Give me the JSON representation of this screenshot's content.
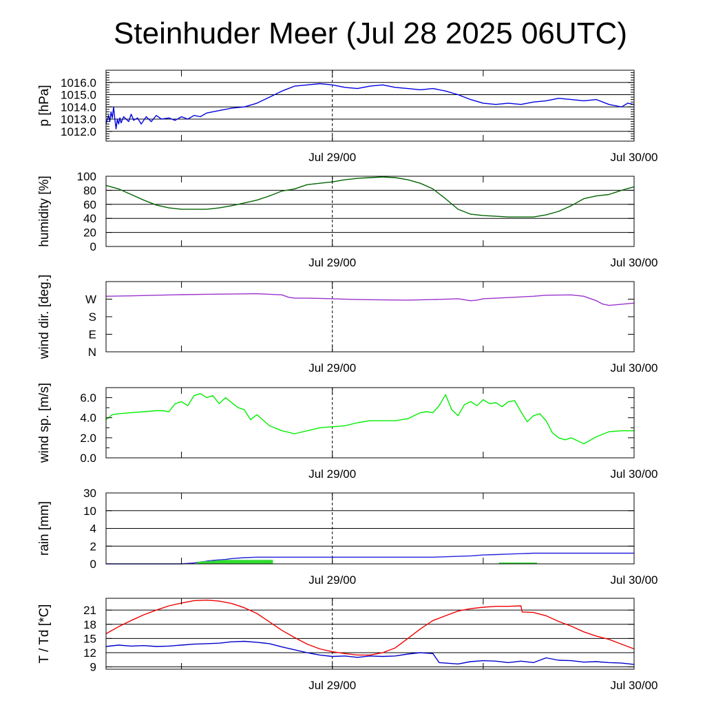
{
  "title": "Steinhuder Meer (Jul 28 2025 06UTC)",
  "x_axis": {
    "range_hours": [
      0,
      42
    ],
    "unit": "hours after Jul 28 2025 06UTC",
    "ticks_hours": [
      6,
      18,
      30,
      42
    ],
    "labels": [
      {
        "at_hours": 18,
        "text": "Jul 29/00"
      },
      {
        "at_hours": 42,
        "text": "Jul 30/00"
      }
    ],
    "midnight_marker_hours": 18
  },
  "chart_data": [
    {
      "type": "line",
      "ylabel": "p [hPa]",
      "ylim": [
        1011.2,
        1017.0
      ],
      "grid": true,
      "ticks": [
        {
          "value": 1012,
          "label": "1012.0"
        },
        {
          "value": 1013,
          "label": "1013.0"
        },
        {
          "value": 1014,
          "label": "1014.0"
        },
        {
          "value": 1015,
          "label": "1015.0"
        },
        {
          "value": 1016,
          "label": "1016.0"
        }
      ],
      "minor_ticks": [
        1011.2,
        1011.4,
        1011.6,
        1011.8,
        1012.2,
        1012.4,
        1012.6,
        1012.8,
        1013.2,
        1013.4,
        1013.6,
        1013.8,
        1014.2,
        1014.4,
        1014.6,
        1014.8,
        1015.2,
        1015.4,
        1015.6,
        1015.8,
        1016.2,
        1016.4,
        1016.6,
        1016.8
      ],
      "series": [
        {
          "color": "#0000e0",
          "x": [
            0,
            0.2,
            0.3,
            0.4,
            0.5,
            0.6,
            0.7,
            0.8,
            0.9,
            1.0,
            1.1,
            1.2,
            1.4,
            1.6,
            1.8,
            2.0,
            2.2,
            2.5,
            2.8,
            3.2,
            3.6,
            4.0,
            4.4,
            5.0,
            5.5,
            6.0,
            6.5,
            7.0,
            7.5,
            8,
            9,
            10,
            11,
            12,
            13,
            14,
            15,
            16,
            17,
            18,
            19,
            20,
            21,
            22,
            23,
            24,
            25,
            26,
            27,
            28,
            29,
            30,
            31,
            32,
            33,
            34,
            35,
            36,
            37,
            38,
            39,
            40,
            40.5,
            41,
            41.5,
            42
          ],
          "y": [
            1012.6,
            1013.3,
            1012.8,
            1013.6,
            1013.1,
            1014.0,
            1013.0,
            1012.2,
            1013.0,
            1012.6,
            1013.1,
            1012.7,
            1013.2,
            1013.0,
            1012.8,
            1013.4,
            1012.9,
            1013.1,
            1012.6,
            1013.2,
            1012.8,
            1013.3,
            1013.0,
            1013.1,
            1012.9,
            1013.2,
            1013.0,
            1013.3,
            1013.2,
            1013.5,
            1013.7,
            1013.9,
            1014.0,
            1014.3,
            1014.8,
            1015.3,
            1015.7,
            1015.8,
            1015.9,
            1015.8,
            1015.6,
            1015.5,
            1015.7,
            1015.8,
            1015.6,
            1015.5,
            1015.4,
            1015.5,
            1015.3,
            1015.0,
            1014.6,
            1014.3,
            1014.2,
            1014.3,
            1014.2,
            1014.4,
            1014.5,
            1014.7,
            1014.6,
            1014.5,
            1014.6,
            1014.2,
            1014.1,
            1014.0,
            1014.3,
            1014.2
          ]
        }
      ]
    },
    {
      "type": "line",
      "ylabel": "humidity [%]",
      "ylim": [
        0,
        100
      ],
      "grid": true,
      "ticks": [
        {
          "value": 0,
          "label": "0"
        },
        {
          "value": 20,
          "label": "20"
        },
        {
          "value": 40,
          "label": "40"
        },
        {
          "value": 60,
          "label": "60"
        },
        {
          "value": 80,
          "label": "80"
        },
        {
          "value": 100,
          "label": "100"
        }
      ],
      "series": [
        {
          "color": "#006400",
          "x": [
            0,
            1,
            2,
            3,
            4,
            5,
            6,
            7,
            8,
            9,
            10,
            11,
            12,
            13,
            14,
            15,
            16,
            17,
            18,
            19,
            20,
            21,
            22,
            23,
            24,
            25,
            26,
            27,
            28,
            29,
            30,
            31,
            32,
            33,
            34,
            35,
            36,
            37,
            38,
            39,
            40,
            41,
            42
          ],
          "y": [
            87,
            82,
            74,
            66,
            59,
            55,
            53,
            53,
            53,
            55,
            58,
            62,
            66,
            72,
            79,
            82,
            88,
            90,
            92,
            95,
            97,
            98,
            99,
            98,
            95,
            90,
            82,
            68,
            53,
            46,
            44,
            43,
            42,
            42,
            42,
            45,
            50,
            58,
            68,
            72,
            74,
            80,
            85
          ]
        }
      ]
    },
    {
      "type": "line",
      "ylabel": "wind dir. [deg.]",
      "ylim": [
        0,
        360
      ],
      "grid": false,
      "ticks": [
        {
          "value": 0,
          "label": "N"
        },
        {
          "value": 90,
          "label": "E"
        },
        {
          "value": 180,
          "label": "S"
        },
        {
          "value": 270,
          "label": "W"
        }
      ],
      "series": [
        {
          "color": "#9932cc",
          "x": [
            0,
            2,
            4,
            6,
            8,
            10,
            12,
            13,
            14,
            14.5,
            15,
            16,
            17,
            18,
            20,
            22,
            24,
            26,
            28,
            29,
            29.5,
            30,
            32,
            34,
            35,
            36,
            37,
            38,
            39,
            39.5,
            40,
            41,
            42
          ],
          "y": [
            285,
            287,
            290,
            293,
            295,
            296,
            298,
            295,
            292,
            280,
            275,
            275,
            274,
            272,
            268,
            266,
            265,
            268,
            272,
            262,
            265,
            272,
            278,
            285,
            290,
            291,
            292,
            285,
            262,
            245,
            238,
            244,
            250
          ]
        }
      ]
    },
    {
      "type": "line",
      "ylabel": "wind sp. [m/s]",
      "ylim": [
        0,
        7
      ],
      "grid": false,
      "ticks": [
        {
          "value": 0,
          "label": "0.0"
        },
        {
          "value": 2,
          "label": "2.0"
        },
        {
          "value": 4,
          "label": "4.0"
        },
        {
          "value": 6,
          "label": "6.0"
        }
      ],
      "minor_ticks": [
        1,
        3,
        5
      ],
      "series": [
        {
          "color": "#00ee00",
          "x": [
            0,
            0.5,
            1,
            2,
            3,
            4,
            4.5,
            5,
            5.5,
            6,
            6.5,
            7,
            7.5,
            8,
            8.5,
            9,
            9.5,
            10,
            10.5,
            11,
            11.5,
            12,
            13,
            14,
            15,
            16,
            17,
            18,
            19,
            20,
            21,
            22,
            23,
            24,
            25,
            25.5,
            26,
            26.5,
            27,
            27.5,
            28,
            28.5,
            29,
            29.5,
            30,
            30.5,
            31,
            31.5,
            32,
            32.5,
            33,
            33.5,
            34,
            34.5,
            35,
            35.5,
            36,
            36.5,
            37,
            38,
            39,
            40,
            41,
            42
          ],
          "y": [
            3.8,
            4.3,
            4.4,
            4.5,
            4.6,
            4.7,
            4.7,
            4.6,
            5.4,
            5.6,
            5.2,
            6.2,
            6.4,
            6.0,
            6.2,
            5.4,
            6.0,
            5.5,
            5.0,
            4.8,
            3.8,
            4.3,
            3.2,
            2.7,
            2.4,
            2.7,
            3.0,
            3.1,
            3.2,
            3.5,
            3.7,
            3.7,
            3.7,
            3.9,
            4.5,
            4.6,
            4.5,
            5.2,
            6.3,
            4.8,
            4.2,
            5.3,
            5.6,
            5.2,
            5.8,
            5.4,
            5.5,
            5.1,
            5.6,
            5.7,
            4.6,
            3.6,
            4.2,
            4.4,
            3.7,
            2.5,
            2.0,
            1.8,
            2.0,
            1.4,
            2.1,
            2.6,
            2.7,
            2.7
          ]
        }
      ]
    },
    {
      "type": "area",
      "ylabel": "rain [mm]",
      "ylim": [
        0,
        30
      ],
      "scale": "nonlinear",
      "grid": true,
      "ticks": [
        {
          "value": 0,
          "label": "0"
        },
        {
          "value": 2,
          "label": "2"
        },
        {
          "value": 4,
          "label": "4"
        },
        {
          "value": 10,
          "label": "10"
        },
        {
          "value": 30,
          "label": "30"
        }
      ],
      "series": [
        {
          "name": "",
          "color": "#2222dd",
          "x": [
            0,
            6,
            7,
            7.5,
            8,
            8.5,
            9,
            9.5,
            10,
            11,
            12,
            15,
            18,
            20,
            24,
            26,
            27,
            28,
            29,
            30,
            31,
            32,
            33,
            34,
            42
          ],
          "y": [
            0,
            0,
            0.1,
            0.2,
            0.3,
            0.4,
            0.45,
            0.5,
            0.6,
            0.7,
            0.75,
            0.75,
            0.75,
            0.75,
            0.75,
            0.75,
            0.8,
            0.85,
            0.9,
            1.0,
            1.05,
            1.1,
            1.15,
            1.2,
            1.2
          ]
        },
        {
          "name": "",
          "color": "#33dd33",
          "bars": [
            [
              7.5,
              0.25
            ],
            [
              8.0,
              0.3
            ],
            [
              8.5,
              0.35
            ],
            [
              9.0,
              0.4
            ],
            [
              9.5,
              0.45
            ],
            [
              10.0,
              0.45
            ],
            [
              10.5,
              0.45
            ],
            [
              11.0,
              0.45
            ],
            [
              11.5,
              0.45
            ],
            [
              12.0,
              0.45
            ],
            [
              12.5,
              0.45
            ],
            [
              13.0,
              0.45
            ],
            [
              31.5,
              0.15
            ],
            [
              32.0,
              0.15
            ],
            [
              32.5,
              0.15
            ],
            [
              33.0,
              0.15
            ],
            [
              33.5,
              0.15
            ],
            [
              34.0,
              0.15
            ]
          ]
        }
      ]
    },
    {
      "type": "line",
      "ylabel": "T / Td [*C]",
      "ylim": [
        8.5,
        23.5
      ],
      "grid": true,
      "ticks": [
        {
          "value": 9,
          "label": "9"
        },
        {
          "value": 12,
          "label": "12"
        },
        {
          "value": 15,
          "label": "15"
        },
        {
          "value": 18,
          "label": "18"
        },
        {
          "value": 21,
          "label": "21"
        }
      ],
      "series": [
        {
          "color": "#ee0000",
          "x": [
            0,
            1,
            2,
            3,
            4,
            5,
            6,
            7,
            8,
            9,
            10,
            11,
            12,
            13,
            14,
            15,
            16,
            17,
            18,
            19,
            20,
            21,
            22,
            23,
            24,
            25,
            26,
            27,
            28,
            29,
            30,
            31,
            32,
            33,
            33.1,
            34,
            35,
            36,
            37,
            38,
            39,
            40,
            41,
            42
          ],
          "y": [
            16.0,
            17.5,
            18.8,
            20.0,
            21.0,
            21.9,
            22.5,
            23.0,
            23.1,
            22.9,
            22.4,
            21.5,
            20.3,
            18.5,
            16.7,
            15.2,
            13.8,
            12.8,
            12.2,
            11.8,
            11.5,
            11.5,
            12.0,
            13.0,
            15.0,
            17.0,
            18.8,
            19.8,
            20.8,
            21.3,
            21.6,
            21.8,
            21.8,
            21.9,
            20.6,
            20.5,
            19.8,
            18.6,
            17.6,
            16.4,
            15.5,
            14.8,
            13.8,
            12.8
          ]
        },
        {
          "color": "#0000cc",
          "x": [
            0,
            1,
            2,
            3,
            4,
            5,
            6,
            7,
            8,
            9,
            10,
            11,
            12,
            13,
            14,
            15,
            16,
            17,
            18,
            19,
            20,
            21,
            22,
            23,
            24,
            25,
            26,
            26.5,
            27,
            28,
            29,
            30,
            31,
            32,
            33,
            34,
            35,
            36,
            37,
            38,
            39,
            40,
            41,
            42
          ],
          "y": [
            13.3,
            13.6,
            13.4,
            13.5,
            13.3,
            13.4,
            13.6,
            13.8,
            13.9,
            14.0,
            14.3,
            14.4,
            14.2,
            13.9,
            13.2,
            12.6,
            12.0,
            11.5,
            11.2,
            11.3,
            11.0,
            11.3,
            11.2,
            11.3,
            11.7,
            12.0,
            11.8,
            9.9,
            9.8,
            9.6,
            10.1,
            10.3,
            10.2,
            9.9,
            10.2,
            9.9,
            10.9,
            10.4,
            10.3,
            10.0,
            10.1,
            9.9,
            9.8,
            9.5
          ]
        }
      ]
    }
  ]
}
